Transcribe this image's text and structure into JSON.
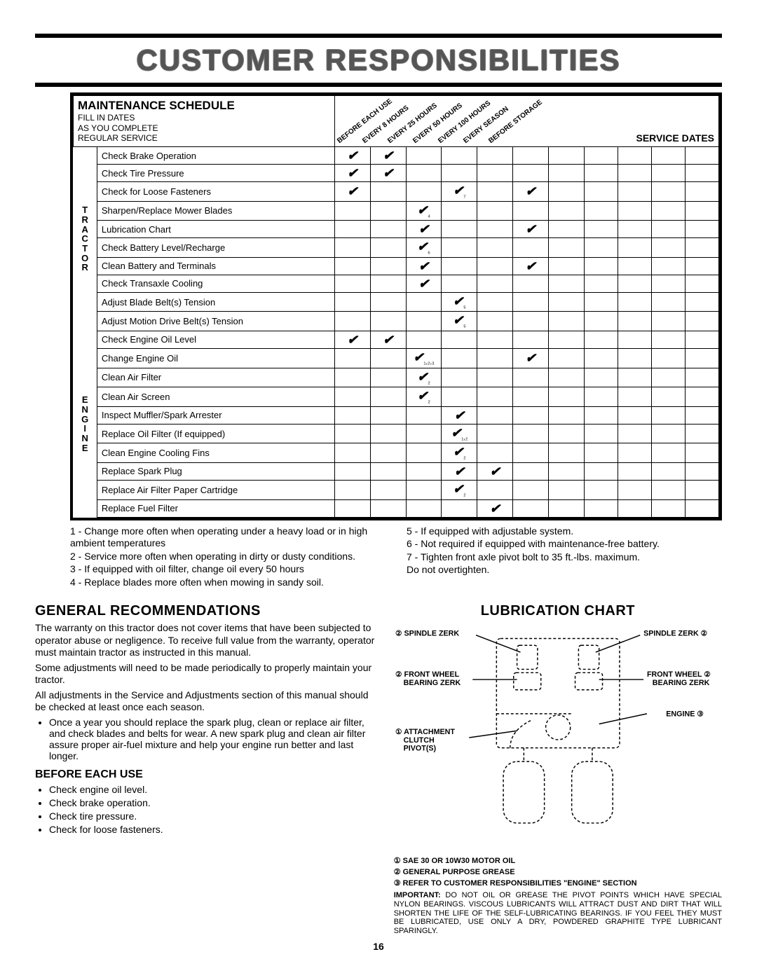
{
  "page_title": "CUSTOMER RESPONSIBILITIES",
  "page_number": "16",
  "colors": {
    "text": "#000000",
    "bg": "#ffffff",
    "title_fill": "#555555"
  },
  "schedule": {
    "title": "MAINTENANCE SCHEDULE",
    "subtitle_lines": [
      "FILL IN DATES",
      "AS YOU COMPLETE",
      "REGULAR SERVICE"
    ],
    "interval_headers": [
      "BEFORE EACH USE",
      "EVERY 8 HOURS",
      "EVERY 25 HOURS",
      "EVERY 50 HOURS",
      "EVERY 100 HOURS",
      "EVERY SEASON",
      "BEFORE STORAGE"
    ],
    "service_dates_label": "SERVICE DATES",
    "groups": [
      {
        "label": "TRACTOR",
        "rows": [
          {
            "desc": "Check Brake Operation",
            "marks": [
              "✔",
              "✔",
              "",
              "",
              "",
              "",
              ""
            ]
          },
          {
            "desc": "Check Tire Pressure",
            "marks": [
              "✔",
              "✔",
              "",
              "",
              "",
              "",
              ""
            ]
          },
          {
            "desc": "Check for Loose Fasteners",
            "marks": [
              "✔",
              "",
              "",
              "✔₇",
              "",
              "✔",
              ""
            ]
          },
          {
            "desc": "Sharpen/Replace Mower Blades",
            "marks": [
              "",
              "",
              "✔₄",
              "",
              "",
              "",
              ""
            ]
          },
          {
            "desc": "Lubrication Chart",
            "marks": [
              "",
              "",
              "✔",
              "",
              "",
              "✔",
              ""
            ]
          },
          {
            "desc": "Check Battery Level/Recharge",
            "marks": [
              "",
              "",
              "✔₆",
              "",
              "",
              "",
              ""
            ]
          },
          {
            "desc": "Clean Battery and Terminals",
            "marks": [
              "",
              "",
              "✔",
              "",
              "",
              "✔",
              ""
            ]
          },
          {
            "desc": "Check Transaxle Cooling",
            "marks": [
              "",
              "",
              "✔",
              "",
              "",
              "",
              ""
            ]
          },
          {
            "desc": "Adjust Blade Belt(s) Tension",
            "marks": [
              "",
              "",
              "",
              "✔₅",
              "",
              "",
              ""
            ]
          },
          {
            "desc": "Adjust Motion Drive Belt(s) Tension",
            "marks": [
              "",
              "",
              "",
              "✔₅",
              "",
              "",
              ""
            ]
          }
        ]
      },
      {
        "label": "ENGINE",
        "rows": [
          {
            "desc": "Check Engine Oil Level",
            "marks": [
              "✔",
              "✔",
              "",
              "",
              "",
              "",
              ""
            ]
          },
          {
            "desc": "Change Engine Oil",
            "marks": [
              "",
              "",
              "✔₁,₂,₃",
              "",
              "",
              "✔",
              ""
            ]
          },
          {
            "desc": "Clean Air Filter",
            "marks": [
              "",
              "",
              "✔₂",
              "",
              "",
              "",
              ""
            ]
          },
          {
            "desc": "Clean Air Screen",
            "marks": [
              "",
              "",
              "✔₂",
              "",
              "",
              "",
              ""
            ]
          },
          {
            "desc": "Inspect Muffler/Spark Arrester",
            "marks": [
              "",
              "",
              "",
              "✔",
              "",
              "",
              ""
            ]
          },
          {
            "desc": "Replace Oil Filter (If equipped)",
            "marks": [
              "",
              "",
              "",
              "✔₁,₂",
              "",
              "",
              ""
            ]
          },
          {
            "desc": "Clean Engine Cooling Fins",
            "marks": [
              "",
              "",
              "",
              "✔₂",
              "",
              "",
              ""
            ]
          },
          {
            "desc": "Replace Spark Plug",
            "marks": [
              "",
              "",
              "",
              "✔",
              "✔",
              "",
              ""
            ]
          },
          {
            "desc": "Replace Air Filter Paper Cartridge",
            "marks": [
              "",
              "",
              "",
              "✔₂",
              "",
              "",
              ""
            ]
          },
          {
            "desc": "Replace Fuel Filter",
            "marks": [
              "",
              "",
              "",
              "",
              "✔",
              "",
              ""
            ]
          }
        ]
      }
    ],
    "service_date_cols": 4
  },
  "footnotes": {
    "left": [
      "1 - Change more often when operating under a heavy load or in high ambient temperatures",
      "2 - Service more often when operating in dirty or dusty conditions.",
      "3 - If equipped with oil filter, change oil every 50 hours",
      "4 - Replace blades more often when mowing in sandy soil."
    ],
    "right": [
      "5 - If equipped with adjustable system.",
      "6 - Not required if equipped with maintenance-free battery.",
      "7 - Tighten front axle pivot bolt to 35 ft.-lbs. maximum.",
      "    Do not overtighten."
    ]
  },
  "general": {
    "heading": "GENERAL RECOMMENDATIONS",
    "p1": "The warranty on this tractor does not cover items that have been subjected to operator abuse or negligence.  To receive full value from the warranty, operator must maintain tractor as instructed in this manual.",
    "p2": "Some adjustments will need to be made periodically to properly maintain your tractor.",
    "p3": "All adjustments in the Service and Adjustments section of this manual should be checked at least once each season.",
    "bullet": "Once a year you should replace the spark plug, clean or replace air filter, and check blades and belts for wear.  A new spark plug and clean air filter assure proper air-fuel mixture and help your engine run better and last longer.",
    "before_heading": "BEFORE EACH USE",
    "before_list": [
      "Check engine oil level.",
      "Check brake operation.",
      "Check tire pressure.",
      "Check for loose fasteners."
    ]
  },
  "lube": {
    "heading": "LUBRICATION CHART",
    "labels": {
      "spindle_l": "② SPINDLE ZERK",
      "spindle_r": "SPINDLE ZERK ②",
      "front_l": "② FRONT WHEEL BEARING ZERK",
      "front_r": "FRONT WHEEL ② BEARING ZERK",
      "engine": "ENGINE ③",
      "attach": "① ATTACHMENT CLUTCH PIVOT(S)"
    },
    "legend": [
      {
        "num": "①",
        "text": "SAE 30 OR 10W30 MOTOR OIL"
      },
      {
        "num": "②",
        "text": "GENERAL PURPOSE GREASE"
      },
      {
        "num": "③",
        "text": "REFER TO CUSTOMER RESPONSIBILITIES \"ENGINE\" SECTION"
      }
    ],
    "important_label": "IMPORTANT:",
    "important": "DO NOT OIL OR GREASE THE PIVOT POINTS WHICH HAVE SPECIAL NYLON BEARINGS.  VISCOUS LUBRICANTS WILL ATTRACT DUST AND DIRT THAT WILL SHORTEN THE LIFE OF THE SELF-LUBRICATING BEARINGS.  IF YOU FEEL THEY MUST BE LUBRICATED, USE ONLY A DRY, POWDERED GRAPHITE TYPE LUBRICANT SPARINGLY."
  }
}
